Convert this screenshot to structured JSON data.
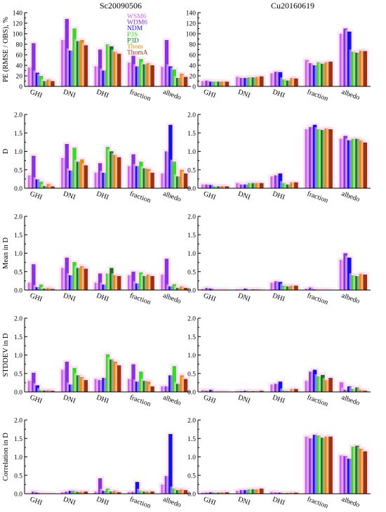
{
  "column_titles": [
    "Sc20090506",
    "Cu20160619"
  ],
  "legend": {
    "entries": [
      "WSM6",
      "WDM6",
      "NDM",
      "P3S",
      "P3D",
      "Thom",
      "ThomA"
    ]
  },
  "colors": {
    "series": [
      "#cc66ee",
      "#8833dd",
      "#1111ee",
      "#33dd22",
      "#117711",
      "#ee8800",
      "#993311"
    ],
    "halo": "#ffd4f4",
    "axis": "#000000"
  },
  "chart_data": [
    {
      "type": "bar",
      "panel": "row1-left",
      "categories": [
        "GHI",
        "DNI",
        "DHI",
        "fraction",
        "albedo"
      ],
      "ylabel": "PE (RMSE / OBS), %",
      "ylim": [
        0,
        140
      ],
      "yticks": [
        "0",
        "20",
        "40",
        "60",
        "80",
        "100",
        "120",
        "140"
      ],
      "series": [
        {
          "name": "WSM6",
          "values": [
            36,
            88,
            38,
            45,
            37
          ]
        },
        {
          "name": "WDM6",
          "values": [
            82,
            128,
            70,
            58,
            88
          ]
        },
        {
          "name": "NDM",
          "values": [
            26,
            68,
            30,
            38,
            38
          ]
        },
        {
          "name": "P3S",
          "values": [
            20,
            110,
            80,
            52,
            32
          ]
        },
        {
          "name": "P3D",
          "values": [
            10,
            86,
            76,
            42,
            16
          ]
        },
        {
          "name": "Thom",
          "values": [
            13,
            88,
            66,
            44,
            24
          ]
        },
        {
          "name": "ThomA",
          "values": [
            10,
            78,
            62,
            40,
            18
          ]
        }
      ]
    },
    {
      "type": "bar",
      "panel": "row1-right",
      "categories": [
        "GHI",
        "DNI",
        "DHI",
        "fraction",
        "albedo"
      ],
      "ylabel": "",
      "ylim": [
        0,
        140
      ],
      "yticks": [
        "0",
        "20",
        "40",
        "60",
        "80",
        "100",
        "120",
        "140"
      ],
      "series": [
        {
          "name": "WSM6",
          "values": [
            10,
            18,
            25,
            50,
            100
          ]
        },
        {
          "name": "WDM6",
          "values": [
            11,
            16,
            28,
            44,
            110
          ]
        },
        {
          "name": "NDM",
          "values": [
            9,
            16,
            27,
            40,
            104
          ]
        },
        {
          "name": "P3S",
          "values": [
            9,
            17,
            13,
            46,
            66
          ]
        },
        {
          "name": "P3D",
          "values": [
            9,
            17,
            11,
            43,
            64
          ]
        },
        {
          "name": "Thom",
          "values": [
            9,
            18,
            16,
            46,
            68
          ]
        },
        {
          "name": "ThomA",
          "values": [
            9,
            19,
            15,
            47,
            67
          ]
        }
      ]
    },
    {
      "type": "bar",
      "panel": "row2-left",
      "categories": [
        "GHI",
        "DNI",
        "DHI",
        "fraction",
        "albedo"
      ],
      "ylabel": "D",
      "ylim": [
        0,
        2
      ],
      "yticks": [
        "0.0",
        "0.5",
        "1.0",
        "1.5",
        "2.0"
      ],
      "series": [
        {
          "name": "WSM6",
          "values": [
            0.35,
            0.82,
            0.42,
            0.6,
            0.4
          ]
        },
        {
          "name": "WDM6",
          "values": [
            0.88,
            1.2,
            0.68,
            0.92,
            1.0
          ]
        },
        {
          "name": "NDM",
          "values": [
            0.24,
            0.48,
            0.42,
            0.6,
            1.72
          ]
        },
        {
          "name": "P3S",
          "values": [
            0.18,
            1.1,
            1.12,
            0.72,
            0.72
          ]
        },
        {
          "name": "P3D",
          "values": [
            0.06,
            0.72,
            1.0,
            0.54,
            0.32
          ]
        },
        {
          "name": "Thom",
          "values": [
            0.12,
            0.78,
            0.9,
            0.52,
            0.5
          ]
        },
        {
          "name": "ThomA",
          "values": [
            0.05,
            0.62,
            0.84,
            0.42,
            0.4
          ]
        }
      ]
    },
    {
      "type": "bar",
      "panel": "row2-right",
      "categories": [
        "GHI",
        "DNI",
        "DHI",
        "fraction",
        "albedo"
      ],
      "ylabel": "",
      "ylim": [
        0,
        2
      ],
      "yticks": [
        "0.0",
        "0.5",
        "1.0",
        "1.5",
        "2.0"
      ],
      "series": [
        {
          "name": "WSM6",
          "values": [
            0.1,
            0.14,
            0.32,
            1.6,
            1.34
          ]
        },
        {
          "name": "WDM6",
          "values": [
            0.1,
            0.1,
            0.35,
            1.66,
            1.42
          ]
        },
        {
          "name": "NDM",
          "values": [
            0.09,
            0.1,
            0.4,
            1.72,
            1.3
          ]
        },
        {
          "name": "P3S",
          "values": [
            0.05,
            0.14,
            0.14,
            1.6,
            1.34
          ]
        },
        {
          "name": "P3D",
          "values": [
            0.05,
            0.14,
            0.1,
            1.58,
            1.34
          ]
        },
        {
          "name": "Thom",
          "values": [
            0.06,
            0.14,
            0.16,
            1.62,
            1.3
          ]
        },
        {
          "name": "ThomA",
          "values": [
            0.05,
            0.14,
            0.16,
            1.6,
            1.24
          ]
        }
      ]
    },
    {
      "type": "bar",
      "panel": "row3-left",
      "categories": [
        "GHI",
        "DNI",
        "DHI",
        "fraction",
        "albedo"
      ],
      "ylabel": "Mean in D",
      "ylim": [
        0,
        2
      ],
      "yticks": [
        "0.0",
        "0.5",
        "1.0",
        "1.5",
        "2.0"
      ],
      "series": [
        {
          "name": "WSM6",
          "values": [
            0.2,
            0.6,
            0.2,
            0.4,
            0.42
          ]
        },
        {
          "name": "WDM6",
          "values": [
            0.7,
            0.88,
            0.45,
            0.5,
            0.85
          ]
        },
        {
          "name": "NDM",
          "values": [
            0.08,
            0.4,
            0.15,
            0.18,
            0.1
          ]
        },
        {
          "name": "P3S",
          "values": [
            0.15,
            0.76,
            0.45,
            0.48,
            0.16
          ]
        },
        {
          "name": "P3D",
          "values": [
            0.04,
            0.6,
            0.6,
            0.38,
            0.06
          ]
        },
        {
          "name": "Thom",
          "values": [
            0.06,
            0.65,
            0.4,
            0.42,
            0.1
          ]
        },
        {
          "name": "ThomA",
          "values": [
            0.03,
            0.58,
            0.38,
            0.38,
            0.06
          ]
        }
      ]
    },
    {
      "type": "bar",
      "panel": "row3-right",
      "categories": [
        "GHI",
        "DNI",
        "DHI",
        "fraction",
        "albedo"
      ],
      "ylabel": "",
      "ylim": [
        0,
        2
      ],
      "yticks": [
        "0.0",
        "0.5",
        "1.0",
        "1.5",
        "2.0"
      ],
      "series": [
        {
          "name": "WSM6",
          "values": [
            0.03,
            0.02,
            0.2,
            0.04,
            0.82
          ]
        },
        {
          "name": "WDM6",
          "values": [
            0.06,
            0.01,
            0.24,
            0.07,
            1.0
          ]
        },
        {
          "name": "NDM",
          "values": [
            0.04,
            0.04,
            0.22,
            0.02,
            0.88
          ]
        },
        {
          "name": "P3S",
          "values": [
            0.01,
            0.01,
            0.12,
            0.01,
            0.4
          ]
        },
        {
          "name": "P3D",
          "values": [
            0.01,
            0.02,
            0.1,
            0.01,
            0.38
          ]
        },
        {
          "name": "Thom",
          "values": [
            0.01,
            0.02,
            0.12,
            0.01,
            0.44
          ]
        },
        {
          "name": "ThomA",
          "values": [
            0.01,
            0.01,
            0.12,
            0.01,
            0.42
          ]
        }
      ]
    },
    {
      "type": "bar",
      "panel": "row4-left",
      "categories": [
        "GHI",
        "DNI",
        "DHI",
        "fraction",
        "albedo"
      ],
      "ylabel": "STDDEV in D",
      "ylim": [
        0,
        2
      ],
      "yticks": [
        "0.0",
        "0.5",
        "1.0",
        "1.5",
        "2.0"
      ],
      "series": [
        {
          "name": "WSM6",
          "values": [
            0.3,
            0.6,
            0.35,
            0.35,
            0.15
          ]
        },
        {
          "name": "WDM6",
          "values": [
            0.52,
            0.82,
            0.32,
            0.75,
            0.15
          ]
        },
        {
          "name": "NDM",
          "values": [
            0.18,
            0.2,
            0.38,
            0.28,
            0.45
          ]
        },
        {
          "name": "P3S",
          "values": [
            0.05,
            0.65,
            1.02,
            0.55,
            0.7
          ]
        },
        {
          "name": "P3D",
          "values": [
            0.04,
            0.45,
            0.88,
            0.3,
            0.22
          ]
        },
        {
          "name": "Thom",
          "values": [
            0.05,
            0.4,
            0.82,
            0.28,
            0.45
          ]
        },
        {
          "name": "ThomA",
          "values": [
            0.03,
            0.32,
            0.72,
            0.15,
            0.35
          ]
        }
      ]
    },
    {
      "type": "bar",
      "panel": "row4-right",
      "categories": [
        "GHI",
        "DNI",
        "DHI",
        "fraction",
        "albedo"
      ],
      "ylabel": "",
      "ylim": [
        0,
        2
      ],
      "yticks": [
        "0.0",
        "0.5",
        "1.0",
        "1.5",
        "2.0"
      ],
      "series": [
        {
          "name": "WSM6",
          "values": [
            0.05,
            0.02,
            0.2,
            0.3,
            0.26
          ]
        },
        {
          "name": "WDM6",
          "values": [
            0.03,
            0.02,
            0.22,
            0.55,
            0.06
          ]
        },
        {
          "name": "NDM",
          "values": [
            0.06,
            0.03,
            0.28,
            0.6,
            0.15
          ]
        },
        {
          "name": "P3S",
          "values": [
            0.01,
            0.02,
            0.04,
            0.42,
            0.08
          ]
        },
        {
          "name": "P3D",
          "values": [
            0.01,
            0.02,
            0.02,
            0.46,
            0.12
          ]
        },
        {
          "name": "Thom",
          "values": [
            0.01,
            0.02,
            0.08,
            0.32,
            0.06
          ]
        },
        {
          "name": "ThomA",
          "values": [
            0.01,
            0.03,
            0.08,
            0.38,
            0.03
          ]
        }
      ]
    },
    {
      "type": "bar",
      "panel": "row5-left",
      "categories": [
        "GHI",
        "DNI",
        "DHI",
        "fraction",
        "albedo"
      ],
      "ylabel": "Correlation in D",
      "ylim": [
        0,
        2
      ],
      "yticks": [
        "0.0",
        "0.5",
        "1.0",
        "1.5",
        "2.0"
      ],
      "series": [
        {
          "name": "WSM6",
          "values": [
            0.01,
            0.04,
            0.06,
            0.05,
            0.25
          ]
        },
        {
          "name": "WDM6",
          "values": [
            0.06,
            0.06,
            0.42,
            0.05,
            0.48
          ]
        },
        {
          "name": "NDM",
          "values": [
            0.03,
            0.08,
            0.08,
            0.32,
            1.62
          ]
        },
        {
          "name": "P3S",
          "values": [
            0.01,
            0.08,
            0.14,
            0.08,
            0.14
          ]
        },
        {
          "name": "P3D",
          "values": [
            0.005,
            0.05,
            0.06,
            0.06,
            0.1
          ]
        },
        {
          "name": "Thom",
          "values": [
            0.005,
            0.06,
            0.08,
            0.06,
            0.12
          ]
        },
        {
          "name": "ThomA",
          "values": [
            0.005,
            0.06,
            0.04,
            0.06,
            0.1
          ]
        }
      ]
    },
    {
      "type": "bar",
      "panel": "row5-right",
      "categories": [
        "GHI",
        "DNI",
        "DHI",
        "fraction",
        "albedo"
      ],
      "ylabel": "",
      "ylim": [
        0,
        2
      ],
      "yticks": [
        "0.0",
        "0.5",
        "1.0",
        "1.5",
        "2.0"
      ],
      "series": [
        {
          "name": "WSM6",
          "values": [
            0.03,
            0.08,
            0.05,
            1.55,
            1.04
          ]
        },
        {
          "name": "WDM6",
          "values": [
            0.03,
            0.1,
            0.03,
            1.5,
            1.02
          ]
        },
        {
          "name": "NDM",
          "values": [
            0.04,
            0.1,
            0.03,
            1.6,
            0.95
          ]
        },
        {
          "name": "P3S",
          "values": [
            0.03,
            0.12,
            0.02,
            1.58,
            1.28
          ]
        },
        {
          "name": "P3D",
          "values": [
            0.03,
            0.12,
            0.02,
            1.52,
            1.3
          ]
        },
        {
          "name": "Thom",
          "values": [
            0.04,
            0.12,
            0.03,
            1.55,
            1.22
          ]
        },
        {
          "name": "ThomA",
          "values": [
            0.04,
            0.14,
            0.03,
            1.55,
            1.15
          ]
        }
      ]
    }
  ]
}
